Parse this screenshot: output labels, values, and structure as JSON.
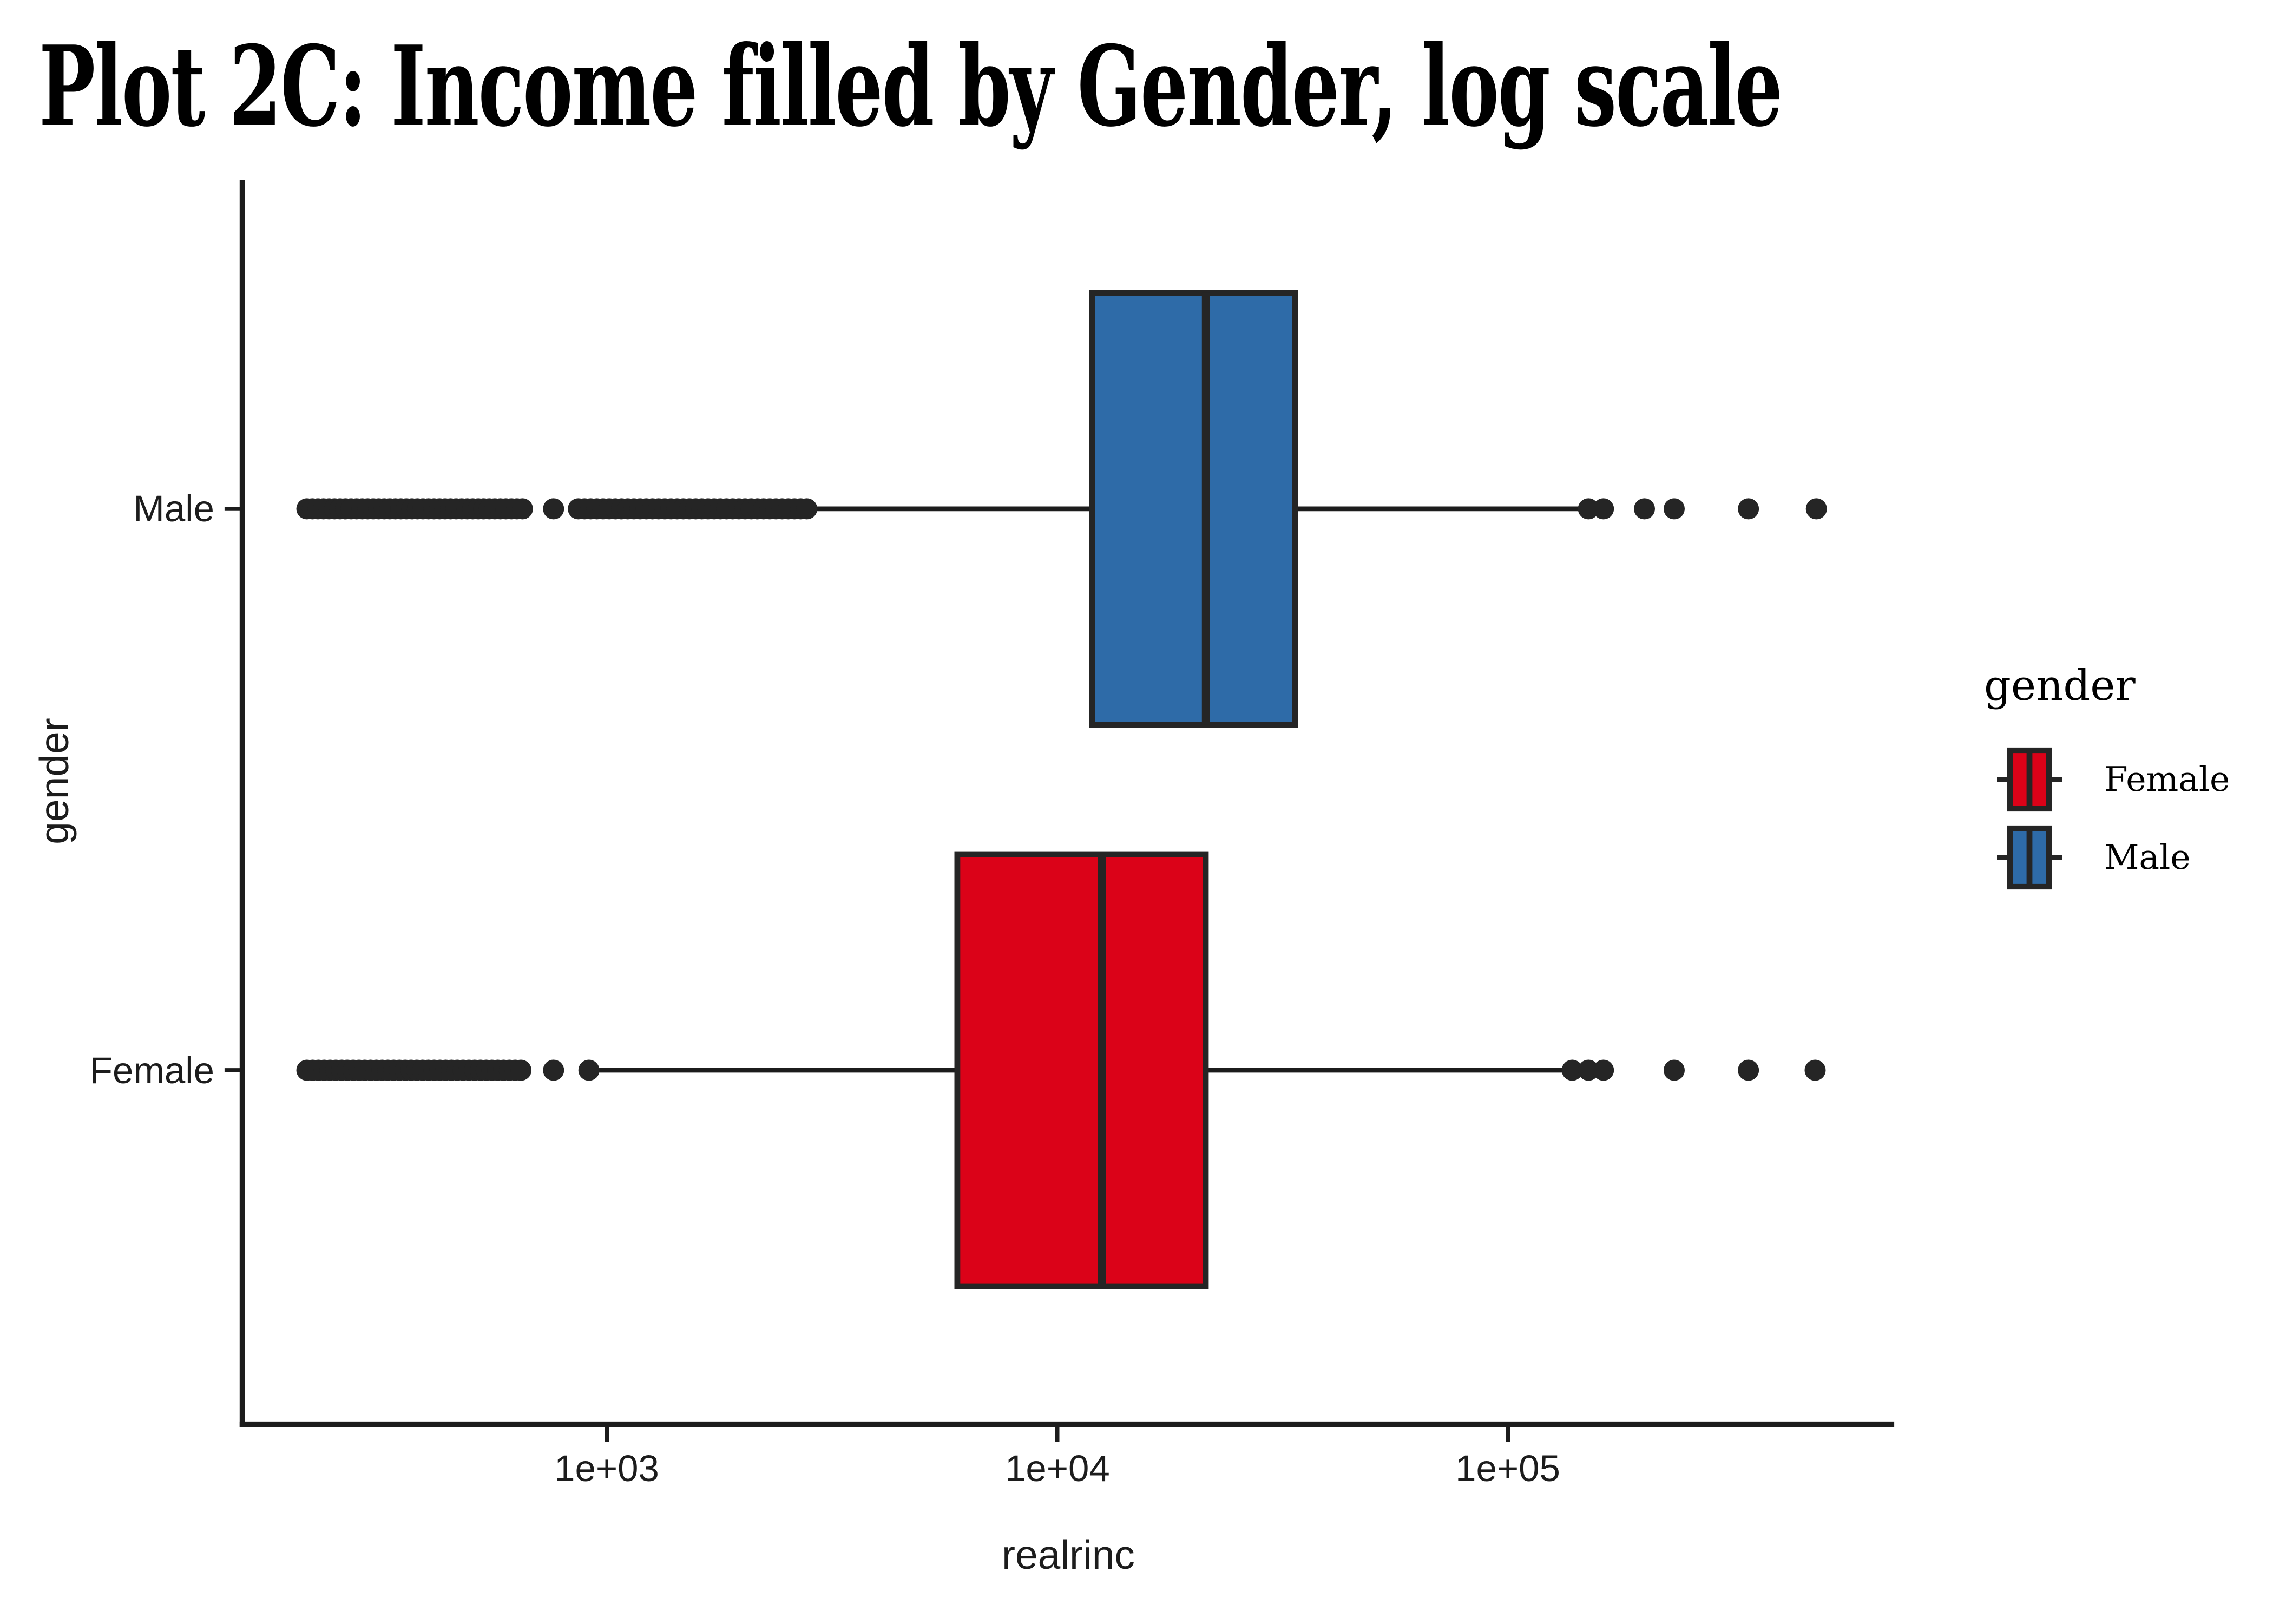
{
  "title": "Plot 2C: Income filled by Gender, log scale",
  "axes": {
    "x": {
      "title": "realrinc",
      "scale": "log10",
      "ticks": [
        {
          "label": "1e+03",
          "value": 1000
        },
        {
          "label": "1e+04",
          "value": 10000
        },
        {
          "label": "1e+05",
          "value": 100000
        }
      ]
    },
    "y": {
      "title": "gender",
      "categories": [
        {
          "label": "Male"
        },
        {
          "label": "Female"
        }
      ]
    }
  },
  "legend": {
    "title": "gender",
    "items": [
      {
        "label": "Female",
        "color": "#DB0218"
      },
      {
        "label": "Male",
        "color": "#2E6BA8"
      }
    ]
  },
  "colors": {
    "female_fill": "#DB0218",
    "male_fill": "#2E6BA8",
    "box_stroke": "#252525",
    "point": "#252525",
    "axis": "#1c1c1c",
    "text": "#000000"
  },
  "chart_data": {
    "type": "boxplot",
    "orientation": "horizontal",
    "title": "Plot 2C: Income filled by Gender, log scale",
    "xlabel": "realrinc",
    "ylabel": "gender",
    "x_scale": "log10",
    "x_ticks": [
      "1e+03",
      "1e+04",
      "1e+05"
    ],
    "x_tick_values": [
      1000,
      10000,
      100000
    ],
    "grid": "none",
    "background": "#ffffff",
    "legend_position": "right",
    "categories_top_to_bottom": [
      "Male",
      "Female"
    ],
    "series": [
      {
        "name": "Male",
        "fill": "#2E6BA8",
        "stats": {
          "whisker_low": 2790,
          "q1": 11960,
          "median": 21360,
          "q3": 33710,
          "whisker_high": 146500
        },
        "outliers_low_bands": [
          {
            "min": 216,
            "max": 650,
            "count": 40
          },
          {
            "min": 865,
            "max": 2780,
            "count": 38
          }
        ],
        "outliers_low_points": [
          762
        ],
        "outliers_high_points": [
          151000,
          163000,
          201000,
          234000,
          342000,
          484000
        ]
      },
      {
        "name": "Female",
        "fill": "#DB0218",
        "stats": {
          "whisker_low": 962,
          "q1": 6000,
          "median": 12560,
          "q3": 21360,
          "whisker_high": 134400
        },
        "outliers_low_bands": [
          {
            "min": 216,
            "max": 645,
            "count": 38
          }
        ],
        "outliers_low_points": [
          762,
          913
        ],
        "outliers_high_points": [
          139000,
          151000,
          163000,
          234000,
          342000,
          481000
        ]
      }
    ]
  }
}
